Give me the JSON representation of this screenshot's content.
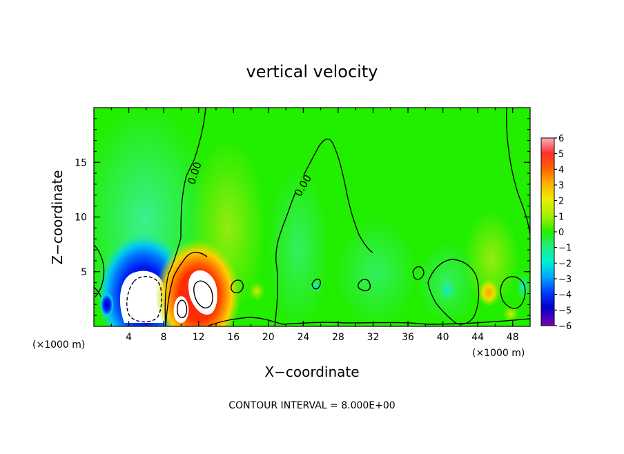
{
  "chart_data": {
    "type": "heatmap",
    "title": "vertical velocity",
    "xlabel": "X−coordinate",
    "ylabel": "Z−coordinate",
    "x_unit_left": "(×1000 m)",
    "x_unit_right": "(×1000 m)",
    "footer": "CONTOUR INTERVAL = 8.000E+00",
    "xlim": [
      0,
      50
    ],
    "ylim": [
      0,
      20
    ],
    "x_ticks": [
      4,
      8,
      12,
      16,
      20,
      24,
      28,
      32,
      36,
      40,
      44,
      48
    ],
    "x_tick_labels": [
      "4",
      "8",
      "12",
      "16",
      "20",
      "24",
      "28",
      "32",
      "36",
      "40",
      "44",
      "48"
    ],
    "y_ticks": [
      5,
      10,
      15
    ],
    "y_tick_labels": [
      "5",
      "10",
      "15"
    ],
    "colorbar": {
      "ticks": [
        6,
        5,
        4,
        3,
        2,
        1,
        0,
        -1,
        -2,
        -3,
        -4,
        -5,
        -6
      ],
      "labels": [
        "6",
        "5",
        "4",
        "3",
        "2",
        "1",
        "0",
        "−1",
        "−2",
        "−3",
        "−4",
        "−5",
        "−6"
      ],
      "min": -6,
      "max": 6
    },
    "contour_labels": [
      "0.00",
      "0.00"
    ],
    "contour_level": 0.0,
    "contour_interval": 8.0,
    "background_color": "#22ee00",
    "features": [
      {
        "type": "downdraft",
        "x": 6,
        "z": 2.5,
        "peak": -6
      },
      {
        "type": "updraft",
        "x": 11.5,
        "z": 3.0,
        "peak": 6
      },
      {
        "type": "weak-updraft",
        "x": 45,
        "z": 3.0,
        "peak": 2
      }
    ]
  }
}
